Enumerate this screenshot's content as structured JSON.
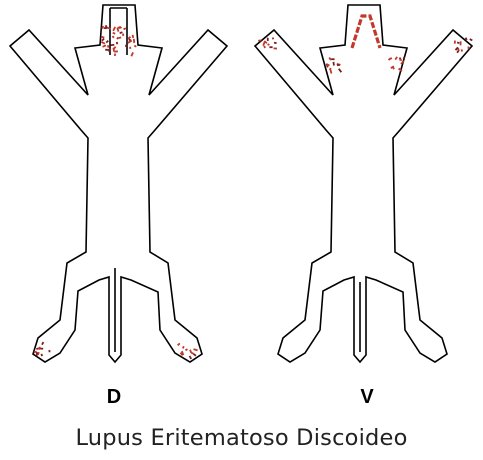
{
  "views": [
    {
      "id": "dorsal",
      "label": "D"
    },
    {
      "id": "ventral",
      "label": "V"
    }
  ],
  "caption": "Lupus Eritematoso Discoideo",
  "colors": {
    "outline": "#000000",
    "lesion": "#c0392b",
    "lesion_dark": "#7a1f1f",
    "background": "#ffffff"
  }
}
